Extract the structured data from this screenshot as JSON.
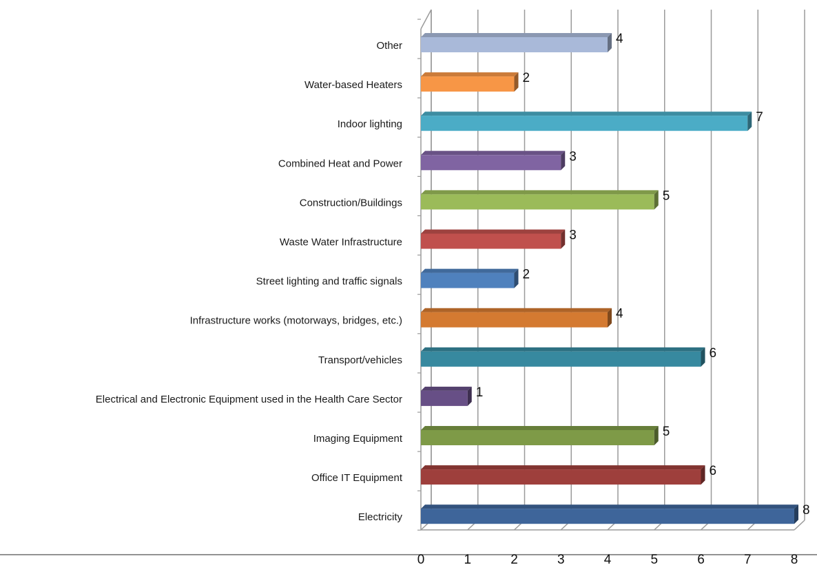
{
  "chart_data": {
    "type": "bar",
    "orientation": "horizontal",
    "style": "3d",
    "title": "",
    "xlabel": "",
    "ylabel": "",
    "grid": true,
    "legend": "none",
    "xlim": [
      0,
      8
    ],
    "x_ticks": [
      "0",
      "1",
      "2",
      "3",
      "4",
      "5",
      "6",
      "7",
      "8"
    ],
    "categories": [
      "Other",
      "Water-based Heaters",
      "Indoor lighting",
      "Combined Heat and Power",
      "Construction/Buildings",
      "Waste Water Infrastructure",
      "Street lighting and traffic signals",
      "Infrastructure works (motorways, bridges, etc.)",
      "Transport/vehicles",
      "Electrical and Electronic Equipment used in the Health Care Sector",
      "Imaging Equipment",
      "Office IT Equipment",
      "Electricity"
    ],
    "values": [
      4,
      2,
      7,
      3,
      5,
      3,
      2,
      4,
      6,
      1,
      5,
      6,
      8
    ],
    "colors": [
      "#a9b9d9",
      "#f79646",
      "#4bacc6",
      "#8064a2",
      "#9bbb59",
      "#c0504d",
      "#4f81bd",
      "#d47a31",
      "#37899f",
      "#674f86",
      "#7e9a47",
      "#9e3f3c",
      "#3e659a"
    ]
  }
}
